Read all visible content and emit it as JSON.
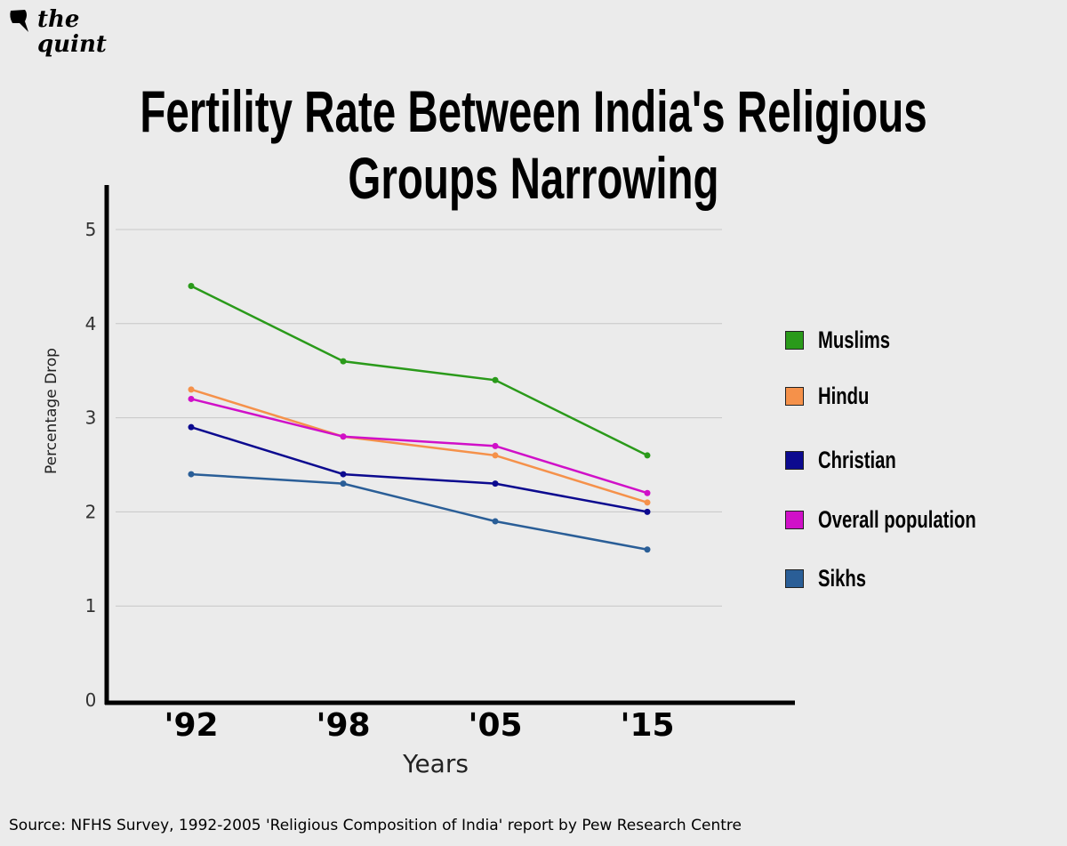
{
  "logo": {
    "text_line1": "the",
    "text_line2": "quint"
  },
  "source": "Source: NFHS Survey, 1992-2005 'Religious Composition of India' report by Pew Research Centre",
  "chart_data": {
    "type": "line",
    "title_line1": "Fertility Rate Between India's Religious",
    "title_line2": "Groups Narrowing",
    "xlabel": "Years",
    "ylabel": "Percentage Drop",
    "categories": [
      "'92",
      "'98",
      "'05",
      "'15"
    ],
    "ylim": [
      0,
      5
    ],
    "yticks": [
      "0",
      "1",
      "2",
      "3",
      "4",
      "5"
    ],
    "grid": true,
    "legend_position": "right",
    "series": [
      {
        "name": "Muslims",
        "color": "#2a9a1a",
        "values": [
          4.4,
          3.6,
          3.4,
          2.6
        ]
      },
      {
        "name": "Hindu",
        "color": "#f5914a",
        "values": [
          3.3,
          2.8,
          2.6,
          2.1
        ]
      },
      {
        "name": "Christian",
        "color": "#0c0a8f",
        "values": [
          2.9,
          2.4,
          2.3,
          2.0
        ]
      },
      {
        "name": "Overall population",
        "color": "#d010c8",
        "values": [
          3.2,
          2.8,
          2.7,
          2.2
        ]
      },
      {
        "name": "Sikhs",
        "color": "#2a5e97",
        "values": [
          2.4,
          2.3,
          1.9,
          1.6
        ]
      }
    ]
  }
}
